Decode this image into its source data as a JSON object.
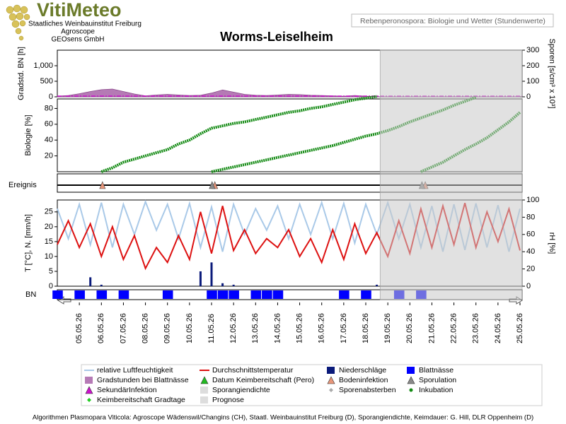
{
  "header": {
    "logo": "VitiMeteo",
    "lines": [
      "Staatliches Weinbauinstitut Freiburg",
      "Agroscope",
      "GEOsens GmbH"
    ],
    "box": "Rebenperonospora: Biologie und Wetter (Stundenwerte)",
    "title": "Worms-Leiselheim"
  },
  "chart_data": [
    {
      "type": "area",
      "y_label": "Gradstd. BN [h]",
      "y2_label": "Sporen [s/cm³ x 10³]",
      "color": "#b57ab5",
      "values": [
        20,
        40,
        100,
        170,
        230,
        250,
        170,
        90,
        30,
        60,
        80,
        60,
        40,
        50,
        120,
        220,
        150,
        80,
        50,
        40,
        60,
        80,
        70,
        50,
        40,
        30,
        20,
        40,
        20,
        0,
        0,
        0,
        0,
        0,
        0,
        0,
        0,
        0,
        0,
        0,
        0,
        0,
        0
      ],
      "ylim": [
        0,
        1500
      ],
      "yticks": [
        0,
        500,
        {
          "value": 1000,
          "label": "1,000"
        }
      ],
      "y2lim": [
        0,
        300
      ],
      "y2ticks": [
        0,
        100,
        200,
        300
      ]
    },
    {
      "type": "line",
      "y_label": "Biologie [%]",
      "ylim": [
        0,
        92
      ],
      "yticks": [
        20,
        40,
        60,
        80
      ],
      "series": [
        {
          "color": "#138a13",
          "values": [
            null,
            null,
            null,
            null,
            0,
            5,
            12,
            16,
            20,
            24,
            28,
            35,
            40,
            48,
            55,
            58,
            61,
            63,
            66,
            69,
            72,
            75,
            77,
            80,
            82,
            85,
            88,
            91,
            93,
            95,
            null,
            null,
            null,
            null,
            null,
            null,
            null,
            null,
            null,
            null,
            null,
            null,
            null
          ]
        },
        {
          "color": "#138a13",
          "values": [
            null,
            null,
            null,
            null,
            null,
            null,
            null,
            null,
            null,
            null,
            null,
            null,
            null,
            null,
            0,
            3,
            6,
            9,
            12,
            15,
            18,
            21,
            24,
            27,
            30,
            33,
            37,
            41,
            45,
            48,
            52,
            57,
            63,
            68,
            73,
            78,
            84,
            89,
            94,
            null,
            null,
            null,
            null
          ]
        },
        {
          "color": "#138a13",
          "values": [
            null,
            null,
            null,
            null,
            null,
            null,
            null,
            null,
            null,
            null,
            null,
            null,
            null,
            null,
            null,
            null,
            null,
            null,
            null,
            null,
            null,
            null,
            null,
            null,
            null,
            null,
            null,
            null,
            null,
            null,
            null,
            null,
            null,
            0,
            6,
            12,
            20,
            28,
            35,
            43,
            53,
            63,
            75
          ]
        }
      ]
    },
    {
      "type": "events",
      "y_label": "Ereignis",
      "series": [
        {
          "color": "#e8967a",
          "x": [
            4.1,
            14.3,
            33.4
          ]
        },
        {
          "color": "#8a8a8a",
          "x": [
            14.05,
            33.1
          ]
        }
      ]
    },
    {
      "type": "combo",
      "y_label": "T [°C], N. [mm/h]",
      "y2_label": "rH [%]",
      "categories": [
        null,
        null,
        "05.05.26",
        null,
        "06.05.26",
        null,
        "07.05.26",
        null,
        "08.05.26",
        null,
        "09.05.26",
        null,
        "10.05.26",
        null,
        "11.05.26",
        null,
        "12.05.26",
        null,
        "13.05.26",
        null,
        "14.05.26",
        null,
        "15.05.26",
        null,
        "16.05.26",
        null,
        "17.05.26",
        null,
        "18.05.26",
        null,
        "19.05.26",
        null,
        "20.05.26",
        null,
        "21.05.26",
        null,
        "22.05.26",
        null,
        "23.05.26",
        null,
        "24.05.26",
        null,
        "25.05.26"
      ],
      "forecast_from": 29.3,
      "ylim": [
        0,
        29
      ],
      "yticks": [
        0,
        5,
        10,
        15,
        20,
        25
      ],
      "y2lim": [
        0,
        100
      ],
      "y2ticks": [
        0,
        20,
        40,
        60,
        80,
        100
      ],
      "series": [
        {
          "type": "line",
          "axis": "y2",
          "color": "#a9c9e8",
          "values": [
            90,
            55,
            95,
            48,
            97,
            45,
            95,
            60,
            98,
            65,
            95,
            55,
            96,
            45,
            92,
            40,
            95,
            60,
            90,
            65,
            93,
            55,
            95,
            60,
            97,
            55,
            96,
            50,
            95,
            60,
            97,
            55,
            95,
            45,
            93,
            40,
            95,
            42,
            96,
            45,
            94,
            40,
            90
          ]
        },
        {
          "type": "line",
          "color": "#dd1111",
          "values": [
            14,
            22,
            13,
            21,
            10,
            20,
            9,
            17,
            6,
            13,
            8,
            17,
            9,
            25,
            11,
            27,
            12,
            19,
            11,
            16,
            13,
            19,
            10,
            16,
            8,
            19,
            9,
            21,
            11,
            18,
            10,
            22,
            11,
            26,
            13,
            27,
            14,
            28,
            13,
            25,
            15,
            26,
            12
          ]
        },
        {
          "type": "bar",
          "color": "#0a1a7a",
          "values": [
            0,
            0,
            0,
            3,
            0.5,
            0,
            0,
            0,
            0,
            0,
            0,
            0,
            0,
            5,
            8,
            1,
            0.5,
            0,
            0,
            0,
            0,
            0,
            0,
            0,
            0,
            0,
            0,
            0,
            0,
            0.5,
            0,
            0,
            0,
            0,
            0,
            0,
            0,
            0,
            0,
            0,
            0,
            0,
            0
          ]
        }
      ]
    },
    {
      "type": "timeline",
      "y_label": "BN",
      "color": "#0000ff",
      "values": [
        1,
        0,
        1,
        0,
        1,
        0,
        1,
        0,
        0,
        0,
        1,
        0,
        0,
        0,
        1,
        1,
        1,
        0,
        1,
        1,
        1,
        0,
        0,
        0,
        0,
        0,
        1,
        0,
        1,
        0,
        0,
        1,
        0,
        1,
        0,
        0,
        0,
        0,
        0,
        0,
        0,
        0,
        0
      ]
    }
  ],
  "legend": [
    {
      "label": "relative Luftfeuchtigkeit",
      "color": "#a9c9e8",
      "symbol": "line"
    },
    {
      "label": "Durchschnittstemperatur",
      "color": "#dd1111",
      "symbol": "line"
    },
    {
      "label": "Niederschläge",
      "color": "#0a1a7a",
      "symbol": "square"
    },
    {
      "label": "Blattnässe",
      "color": "#0000ff",
      "symbol": "square"
    },
    {
      "label": "Gradstunden bei Blattnässe",
      "color": "#b57ab5",
      "symbol": "square"
    },
    {
      "label": "Datum Keimbereitschaft (Pero)",
      "color": "#22bb22",
      "symbol": "triangle"
    },
    {
      "label": "Bodeninfektion",
      "color": "#e8967a",
      "symbol": "triangle"
    },
    {
      "label": "Sporulation",
      "color": "#8a8a8a",
      "symbol": "triangle"
    },
    {
      "label": "SekundärInfektion",
      "color": "#cc11cc",
      "symbol": "triangle"
    },
    {
      "label": "Sporangiendichte",
      "color": "#dddddd",
      "symbol": "square"
    },
    {
      "label": "Sporenabsterben",
      "color": "#aaaaaa",
      "symbol": "diamond"
    },
    {
      "label": "Inkubation",
      "color": "#138a13",
      "symbol": "dot"
    },
    {
      "label": "Keimbereitschaft Gradtage",
      "color": "#22cc22",
      "symbol": "diamond"
    },
    {
      "label": "Prognose",
      "color": "#dddddd",
      "symbol": "square"
    }
  ],
  "footer": "Algorithmen Plasmopara Viticola: Agroscope Wädenswil/Changins (CH), Staatl. Weinbauinstitut Freiburg (D), Sporangiendichte, Keimdauer: G. Hill, DLR Oppenheim (D)"
}
